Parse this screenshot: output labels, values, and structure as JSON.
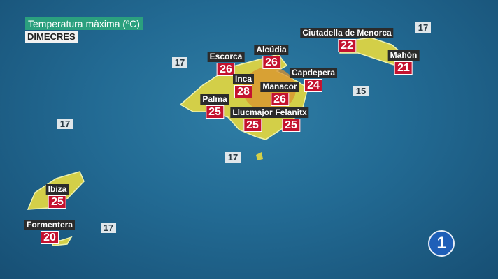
{
  "header": {
    "title": "Temperatura màxima (ºC)",
    "day": "DIMECRES"
  },
  "colors": {
    "sea": "#226a93",
    "land": "#d8d24a",
    "land_hot": "#d9922e",
    "temp_badge": "#c4122f",
    "title_bg": "#2ba07e"
  },
  "cities": [
    {
      "name": "Escorca",
      "temp": "26"
    },
    {
      "name": "Alcúdia",
      "temp": "26"
    },
    {
      "name": "Inca",
      "temp": "28"
    },
    {
      "name": "Palma",
      "temp": "25"
    },
    {
      "name": "Manacor",
      "temp": "26"
    },
    {
      "name": "Capdepera",
      "temp": "24"
    },
    {
      "name": "Llucmajor",
      "temp": "25"
    },
    {
      "name": "Felanitx",
      "temp": "25"
    },
    {
      "name": "Ciutadella de Menorca",
      "temp": "22"
    },
    {
      "name": "Mahón",
      "temp": "21"
    },
    {
      "name": "Ibiza",
      "temp": "25"
    },
    {
      "name": "Formentera",
      "temp": "20"
    }
  ],
  "sea_temps": [
    "17",
    "17",
    "15",
    "17",
    "17",
    "17"
  ],
  "logo": {
    "text": "1"
  }
}
